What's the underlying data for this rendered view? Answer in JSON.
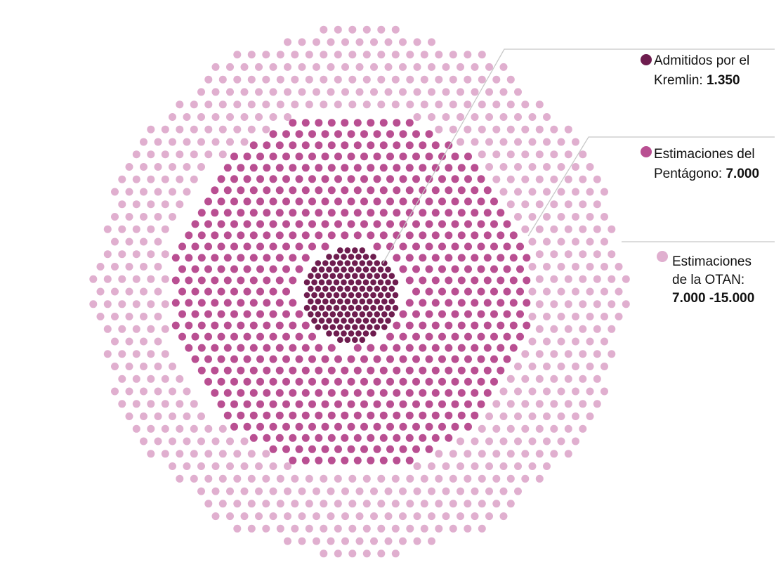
{
  "chart_data": {
    "type": "dot-cluster",
    "colors": {
      "kremlin": "#6e1d4f",
      "pentagon": "#b94f92",
      "otan": "#e0afcf",
      "leader": "#c8c8c8"
    },
    "series": [
      {
        "key": "kremlin",
        "line1": "Admitidos por el",
        "line2_prefix": "Kremlin: ",
        "value_label": "1.350",
        "value": 1350
      },
      {
        "key": "pentagon",
        "line1": "Estimaciones del",
        "line2_prefix": "Pentágono: ",
        "value_label": "7.000",
        "value": 7000
      },
      {
        "key": "otan",
        "line1": "Estimaciones",
        "line2_prefix": "de la OTAN:",
        "value_label": "7.000 -15.000",
        "value_range": [
          7000,
          15000
        ]
      }
    ]
  }
}
